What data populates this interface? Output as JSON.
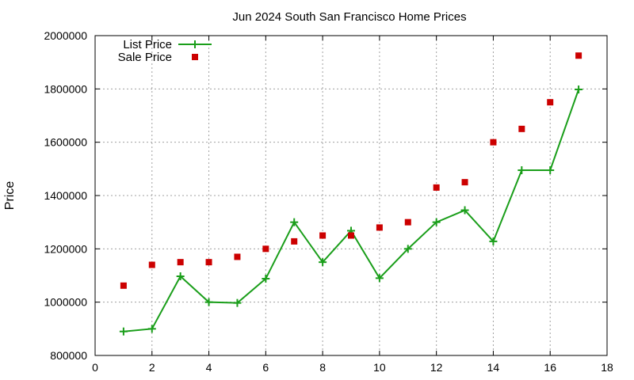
{
  "chart_data": {
    "type": "line",
    "title": "Jun 2024 South San Francisco Home Prices",
    "xlabel": "",
    "ylabel": "Price",
    "xlim": [
      0,
      18
    ],
    "ylim": [
      800000,
      2000000
    ],
    "x_ticks": [
      0,
      2,
      4,
      6,
      8,
      10,
      12,
      14,
      16,
      18
    ],
    "y_ticks": [
      800000,
      1000000,
      1200000,
      1400000,
      1600000,
      1800000,
      2000000
    ],
    "grid": true,
    "legend_position": "top-left",
    "series": [
      {
        "name": "List Price",
        "style": "linespoints",
        "marker": "plus",
        "color": "#1a9e1a",
        "x": [
          1,
          2,
          3,
          4,
          5,
          6,
          7,
          8,
          9,
          10,
          11,
          12,
          13,
          14,
          15,
          16,
          17
        ],
        "y": [
          890000,
          900000,
          1097000,
          1000000,
          997000,
          1088000,
          1300000,
          1150000,
          1268000,
          1090000,
          1200000,
          1300000,
          1345000,
          1228000,
          1495000,
          1495000,
          1798000
        ]
      },
      {
        "name": "Sale Price",
        "style": "points",
        "marker": "square",
        "color": "#cc0000",
        "x": [
          1,
          2,
          3,
          4,
          5,
          6,
          7,
          8,
          9,
          10,
          11,
          12,
          13,
          14,
          15,
          16,
          17
        ],
        "y": [
          1062000,
          1140000,
          1150000,
          1150000,
          1170000,
          1200000,
          1228000,
          1250000,
          1250000,
          1280000,
          1300000,
          1430000,
          1450000,
          1600000,
          1650000,
          1750000,
          1925000
        ]
      }
    ]
  }
}
